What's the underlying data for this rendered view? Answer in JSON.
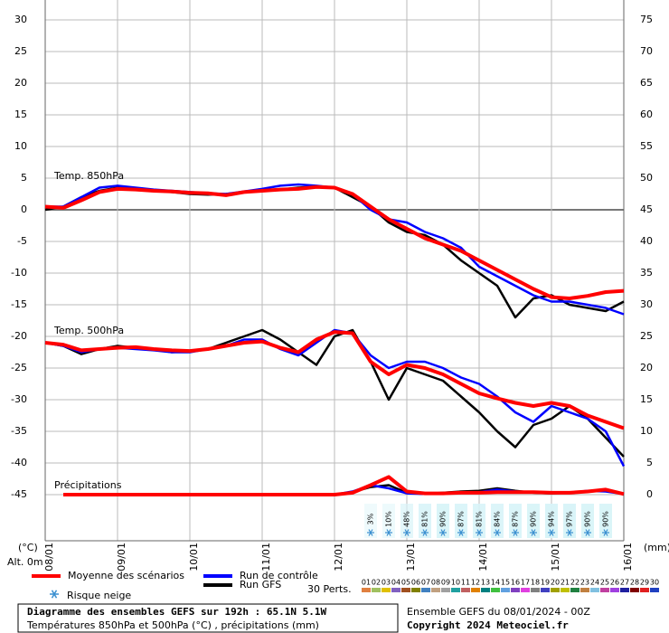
{
  "chart_data": {
    "type": "line",
    "title": "Diagramme des ensembles GEFS sur 192h : 65.1N 5.1W",
    "subtitle": "Températures 850hPa et 500hPa (°C) , précipitations (mm)",
    "run_label": "Ensemble GEFS du 08/01/2024 - 00Z",
    "copyright": "Copyright 2024 Meteociel.fr",
    "y_label": "(°C)",
    "y2_label": "(mm)",
    "altitude": "Alt. 0m",
    "panel_labels": [
      "Temp. 850hPa",
      "Temp. 500hPa",
      "Précipitations"
    ],
    "categories": [
      "08/01",
      null,
      null,
      null,
      "09/01",
      null,
      null,
      null,
      "10/01",
      null,
      null,
      null,
      "11/01",
      null,
      null,
      null,
      "12/01",
      null,
      null,
      null,
      "13/01",
      null,
      null,
      null,
      "14/01",
      null,
      null,
      null,
      "15/01",
      null,
      null,
      null,
      "16/01"
    ],
    "ylim": [
      -45,
      30
    ],
    "yticks": [
      30,
      25,
      20,
      15,
      10,
      5,
      0,
      -5,
      -10,
      -15,
      -20,
      -25,
      -30,
      -35,
      -40,
      -45
    ],
    "y2lim": [
      0,
      75
    ],
    "y2ticks": [
      75,
      70,
      65,
      60,
      55,
      50,
      45,
      40,
      35,
      30,
      25,
      20,
      15,
      10,
      5,
      0
    ],
    "grid": true,
    "series": [
      {
        "name": "Moyenne des scénarios",
        "color": "#ff0000",
        "t850": [
          0.5,
          0.3,
          1.5,
          2.8,
          3.3,
          3.2,
          3.0,
          2.9,
          2.7,
          2.6,
          2.3,
          2.8,
          3.0,
          3.2,
          3.3,
          3.6,
          3.5,
          2.5,
          0.5,
          -1.5,
          -3.0,
          -4.5,
          -5.5,
          -6.5,
          -8.0,
          -9.5,
          -11.0,
          -12.5,
          -13.8,
          -14.0,
          -13.6,
          -13.0,
          -12.8
        ],
        "t500": [
          -21,
          -21.3,
          -22.2,
          -22,
          -21.8,
          -21.7,
          -22,
          -22.2,
          -22.3,
          -22,
          -21.5,
          -21,
          -20.8,
          -21.8,
          -22.5,
          -20.5,
          -19.3,
          -19.5,
          -24,
          -26,
          -24.5,
          -25,
          -26,
          -27.5,
          -29,
          -29.8,
          -30.5,
          -31,
          -30.5,
          -31,
          -32.5,
          -33.5,
          -34.5
        ],
        "precip": [
          null,
          0,
          0,
          0,
          0,
          0,
          0,
          0,
          0,
          0,
          0,
          0,
          0,
          0,
          0,
          0,
          0,
          0.3,
          1.5,
          2.8,
          0.5,
          0.2,
          0.2,
          0.3,
          0.3,
          0.4,
          0.4,
          0.4,
          0.3,
          0.3,
          0.5,
          0.8,
          0.1
        ]
      },
      {
        "name": "Run de contrôle",
        "color": "#0000ff",
        "t850": [
          0.5,
          0.5,
          2,
          3.5,
          3.8,
          3.5,
          3.2,
          3.0,
          2.8,
          2.6,
          2.5,
          2.9,
          3.3,
          3.8,
          4.0,
          3.8,
          3.5,
          2.5,
          0,
          -1.5,
          -2.0,
          -3.5,
          -4.5,
          -6.0,
          -9.0,
          -10.5,
          -12,
          -13.5,
          -14.5,
          -14.5,
          -15,
          -15.5,
          -16.5
        ],
        "t500": [
          -21,
          -21.5,
          -22.5,
          -22,
          -21.8,
          -22,
          -22.2,
          -22.5,
          -22.5,
          -22,
          -21.5,
          -20.5,
          -20.5,
          -22,
          -23,
          -21,
          -19,
          -19.5,
          -23,
          -25,
          -24,
          -24,
          -25,
          -26.5,
          -27.5,
          -29.5,
          -32,
          -33.5,
          -31,
          -32,
          -33,
          -35,
          -40.5
        ],
        "precip": [
          null,
          0,
          0,
          0,
          0,
          0,
          0,
          0,
          0,
          0,
          0,
          0,
          0,
          0,
          0,
          0,
          0,
          0.5,
          1.5,
          1.0,
          0.2,
          0.1,
          0.2,
          0.3,
          0.4,
          0.8,
          0.5,
          0.4,
          0.3,
          0.3,
          0.6,
          0.5,
          0.1
        ]
      },
      {
        "name": "Run GFS",
        "color": "#000000",
        "t850": [
          0,
          0.5,
          2,
          3,
          3.5,
          3.2,
          3.0,
          2.8,
          2.5,
          2.4,
          2.5,
          2.8,
          3.0,
          3.2,
          3.5,
          3.7,
          3.5,
          2.0,
          0.5,
          -2.0,
          -3.5,
          -4.0,
          -5.5,
          -8.0,
          -10.0,
          -12,
          -17,
          -14,
          -13.5,
          -15,
          -15.5,
          -16,
          -14.5
        ],
        "t500": [
          -21,
          -21.5,
          -22.8,
          -22,
          -21.5,
          -21.8,
          -22,
          -22.5,
          -22.3,
          -22,
          -21,
          -20,
          -19,
          -20.5,
          -22.5,
          -24.5,
          -20,
          -19,
          -24,
          -30,
          -25,
          -26,
          -27,
          -29.5,
          -32,
          -35,
          -37.5,
          -34,
          -33,
          -31,
          -33,
          -36,
          -39
        ],
        "precip": [
          null,
          0,
          0,
          0,
          0,
          0,
          0,
          0,
          0,
          0,
          0,
          0,
          0,
          0,
          0,
          0,
          0,
          0.4,
          1.2,
          1.5,
          0.3,
          0.1,
          0.3,
          0.5,
          0.6,
          1.0,
          0.6,
          0.3,
          0.2,
          0.3,
          0.5,
          0.6,
          0.1
        ]
      }
    ],
    "snow_risk": {
      "label": "Risque neige",
      "values": [
        null,
        null,
        null,
        null,
        null,
        null,
        null,
        null,
        null,
        null,
        null,
        null,
        null,
        null,
        null,
        null,
        null,
        null,
        3,
        10,
        48,
        81,
        90,
        87,
        81,
        84,
        87,
        90,
        94,
        97,
        90,
        90,
        null
      ],
      "value_labels": [
        null,
        null,
        null,
        null,
        null,
        null,
        null,
        null,
        null,
        null,
        null,
        null,
        null,
        null,
        null,
        null,
        null,
        null,
        "3%",
        "10%",
        "48%",
        "81%",
        "90%",
        "87%",
        "81%",
        "84%",
        "87%",
        "90%",
        "94%",
        "97%",
        "90%",
        "90%",
        null
      ]
    },
    "perturbations": {
      "label": "30 Perts.",
      "names": [
        "01",
        "02",
        "03",
        "04",
        "05",
        "06",
        "07",
        "08",
        "09",
        "10",
        "11",
        "12",
        "13",
        "14",
        "15",
        "16",
        "17",
        "18",
        "19",
        "20",
        "21",
        "22",
        "23",
        "24",
        "25",
        "26",
        "27",
        "28",
        "29",
        "30"
      ],
      "colors": [
        "#e08040",
        "#a0c060",
        "#e0c000",
        "#8060c0",
        "#a05020",
        "#808000",
        "#4080c0",
        "#c0a080",
        "#a0a0a0",
        "#20a0a0",
        "#c06060",
        "#e08000",
        "#008080",
        "#40c040",
        "#60a0e0",
        "#8040c0",
        "#e040e0",
        "#808080",
        "#4040c0",
        "#a0a000",
        "#c0c000",
        "#208040",
        "#c08040",
        "#80c0e0",
        "#c040a0",
        "#a040e0",
        "#2020a0",
        "#800000",
        "#e02020",
        "#2040c0"
      ]
    }
  }
}
